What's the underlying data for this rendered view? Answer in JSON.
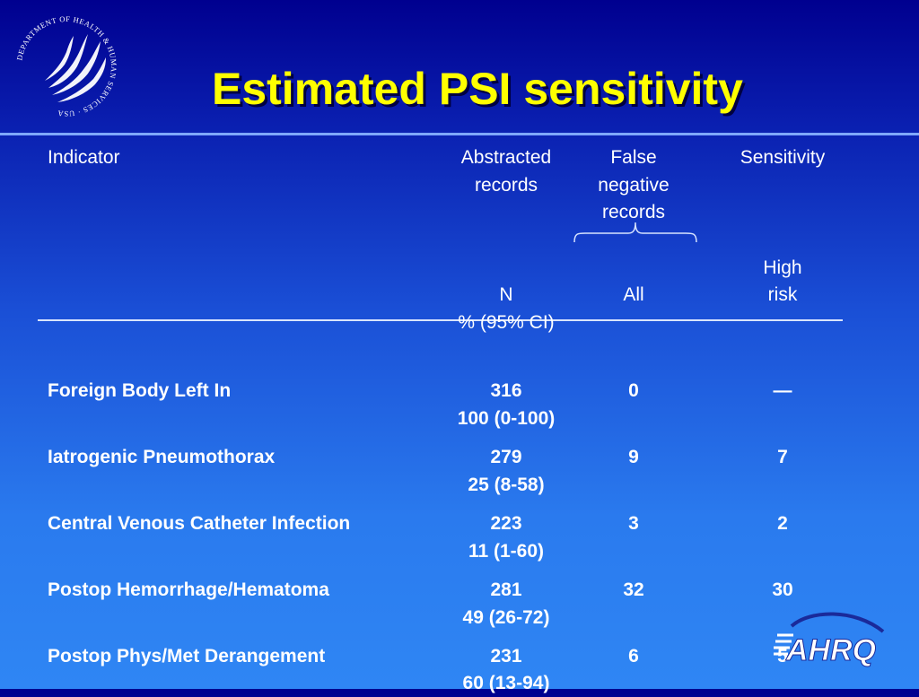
{
  "slide": {
    "title": "Estimated PSI sensitivity",
    "colors": {
      "title": "#ffff00",
      "background_top": "#00008f",
      "background_bottom": "#2f86f4",
      "text": "#ffffff"
    }
  },
  "table": {
    "headers": {
      "indicator": "Indicator",
      "abstracted_line1": "Abstracted",
      "abstracted_line2": "records",
      "false_neg_line1": "False",
      "false_neg_line2": "negative",
      "false_neg_line3": "records",
      "sensitivity": "Sensitivity",
      "sub_n": "N",
      "sub_all": "All",
      "sub_high_line1": "High",
      "sub_high_line2": "risk",
      "sub_sensitivity": "% (95% CI)"
    },
    "rows": [
      {
        "indicator": "Foreign Body Left In",
        "n": "316",
        "all": "0",
        "high_risk": "—",
        "sensitivity": "100 (0-100)"
      },
      {
        "indicator": "Iatrogenic Pneumothorax",
        "n": "279",
        "all": "9",
        "high_risk": "7",
        "sensitivity": "25 (8-58)"
      },
      {
        "indicator": "Central Venous Catheter Infection",
        "n": "223",
        "all": "3",
        "high_risk": "2",
        "sensitivity": "11 (1-60)"
      },
      {
        "indicator": "Postop Hemorrhage/Hematoma",
        "n": "281",
        "all": "32",
        "high_risk": "30",
        "sensitivity": "49 (26-72)"
      },
      {
        "indicator": "Postop Phys/Met Derangement",
        "n": "231",
        "all": "6",
        "high_risk": "5",
        "sensitivity": "60 (13-94)"
      }
    ]
  },
  "logos": {
    "hhs_seal": {
      "icon": "hhs-eagle-seal-icon",
      "text": "DEPARTMENT OF HEALTH & HUMAN SERVICES · USA"
    },
    "ahrq": {
      "icon": "ahrq-logo-icon",
      "text": "AHRQ"
    }
  }
}
